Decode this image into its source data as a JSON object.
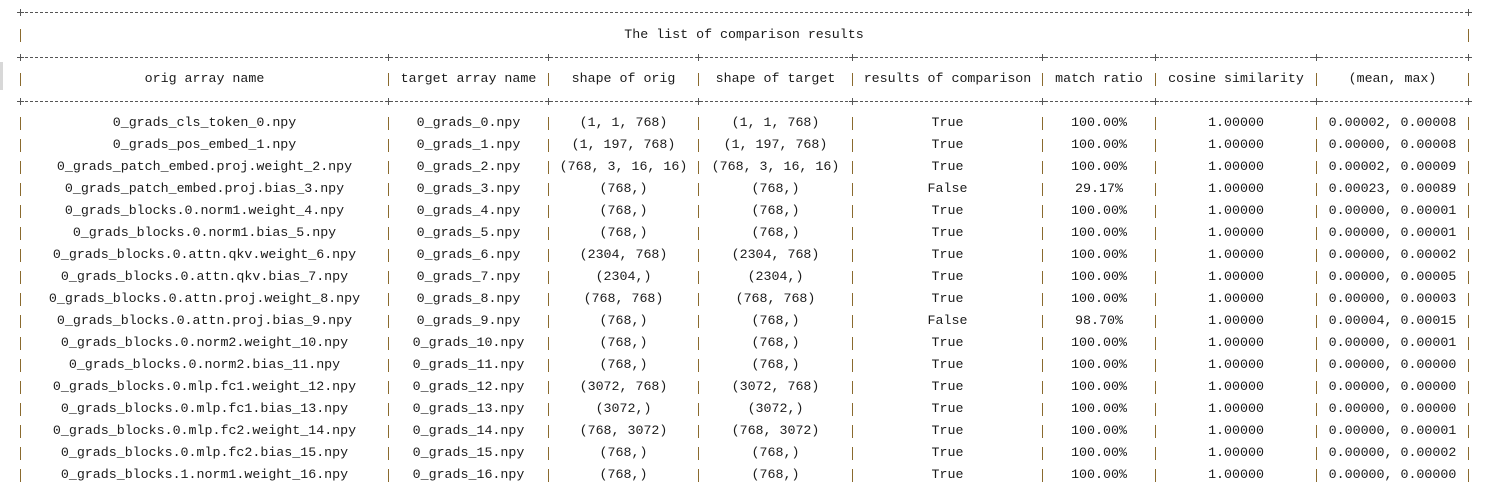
{
  "table": {
    "title": "The list of comparison results",
    "columns": [
      "orig array name",
      "target array name",
      "shape of orig",
      "shape of target",
      "results of comparison",
      "match ratio",
      "cosine similarity",
      "(mean, max)"
    ],
    "rows": [
      [
        "0_grads_cls_token_0.npy",
        "0_grads_0.npy",
        "(1, 1, 768)",
        "(1, 1, 768)",
        "True",
        "100.00%",
        "1.00000",
        "0.00002, 0.00008"
      ],
      [
        "0_grads_pos_embed_1.npy",
        "0_grads_1.npy",
        "(1, 197, 768)",
        "(1, 197, 768)",
        "True",
        "100.00%",
        "1.00000",
        "0.00000, 0.00008"
      ],
      [
        "0_grads_patch_embed.proj.weight_2.npy",
        "0_grads_2.npy",
        "(768, 3, 16, 16)",
        "(768, 3, 16, 16)",
        "True",
        "100.00%",
        "1.00000",
        "0.00002, 0.00009"
      ],
      [
        "0_grads_patch_embed.proj.bias_3.npy",
        "0_grads_3.npy",
        "(768,)",
        "(768,)",
        "False",
        "29.17%",
        "1.00000",
        "0.00023, 0.00089"
      ],
      [
        "0_grads_blocks.0.norm1.weight_4.npy",
        "0_grads_4.npy",
        "(768,)",
        "(768,)",
        "True",
        "100.00%",
        "1.00000",
        "0.00000, 0.00001"
      ],
      [
        "0_grads_blocks.0.norm1.bias_5.npy",
        "0_grads_5.npy",
        "(768,)",
        "(768,)",
        "True",
        "100.00%",
        "1.00000",
        "0.00000, 0.00001"
      ],
      [
        "0_grads_blocks.0.attn.qkv.weight_6.npy",
        "0_grads_6.npy",
        "(2304, 768)",
        "(2304, 768)",
        "True",
        "100.00%",
        "1.00000",
        "0.00000, 0.00002"
      ],
      [
        "0_grads_blocks.0.attn.qkv.bias_7.npy",
        "0_grads_7.npy",
        "(2304,)",
        "(2304,)",
        "True",
        "100.00%",
        "1.00000",
        "0.00000, 0.00005"
      ],
      [
        "0_grads_blocks.0.attn.proj.weight_8.npy",
        "0_grads_8.npy",
        "(768, 768)",
        "(768, 768)",
        "True",
        "100.00%",
        "1.00000",
        "0.00000, 0.00003"
      ],
      [
        "0_grads_blocks.0.attn.proj.bias_9.npy",
        "0_grads_9.npy",
        "(768,)",
        "(768,)",
        "False",
        "98.70%",
        "1.00000",
        "0.00004, 0.00015"
      ],
      [
        "0_grads_blocks.0.norm2.weight_10.npy",
        "0_grads_10.npy",
        "(768,)",
        "(768,)",
        "True",
        "100.00%",
        "1.00000",
        "0.00000, 0.00001"
      ],
      [
        "0_grads_blocks.0.norm2.bias_11.npy",
        "0_grads_11.npy",
        "(768,)",
        "(768,)",
        "True",
        "100.00%",
        "1.00000",
        "0.00000, 0.00000"
      ],
      [
        "0_grads_blocks.0.mlp.fc1.weight_12.npy",
        "0_grads_12.npy",
        "(3072, 768)",
        "(3072, 768)",
        "True",
        "100.00%",
        "1.00000",
        "0.00000, 0.00000"
      ],
      [
        "0_grads_blocks.0.mlp.fc1.bias_13.npy",
        "0_grads_13.npy",
        "(3072,)",
        "(3072,)",
        "True",
        "100.00%",
        "1.00000",
        "0.00000, 0.00000"
      ],
      [
        "0_grads_blocks.0.mlp.fc2.weight_14.npy",
        "0_grads_14.npy",
        "(768, 3072)",
        "(768, 3072)",
        "True",
        "100.00%",
        "1.00000",
        "0.00000, 0.00001"
      ],
      [
        "0_grads_blocks.0.mlp.fc2.bias_15.npy",
        "0_grads_15.npy",
        "(768,)",
        "(768,)",
        "True",
        "100.00%",
        "1.00000",
        "0.00000, 0.00002"
      ],
      [
        "0_grads_blocks.1.norm1.weight_16.npy",
        "0_grads_16.npy",
        "(768,)",
        "(768,)",
        "True",
        "100.00%",
        "1.00000",
        "0.00000, 0.00000"
      ]
    ]
  }
}
